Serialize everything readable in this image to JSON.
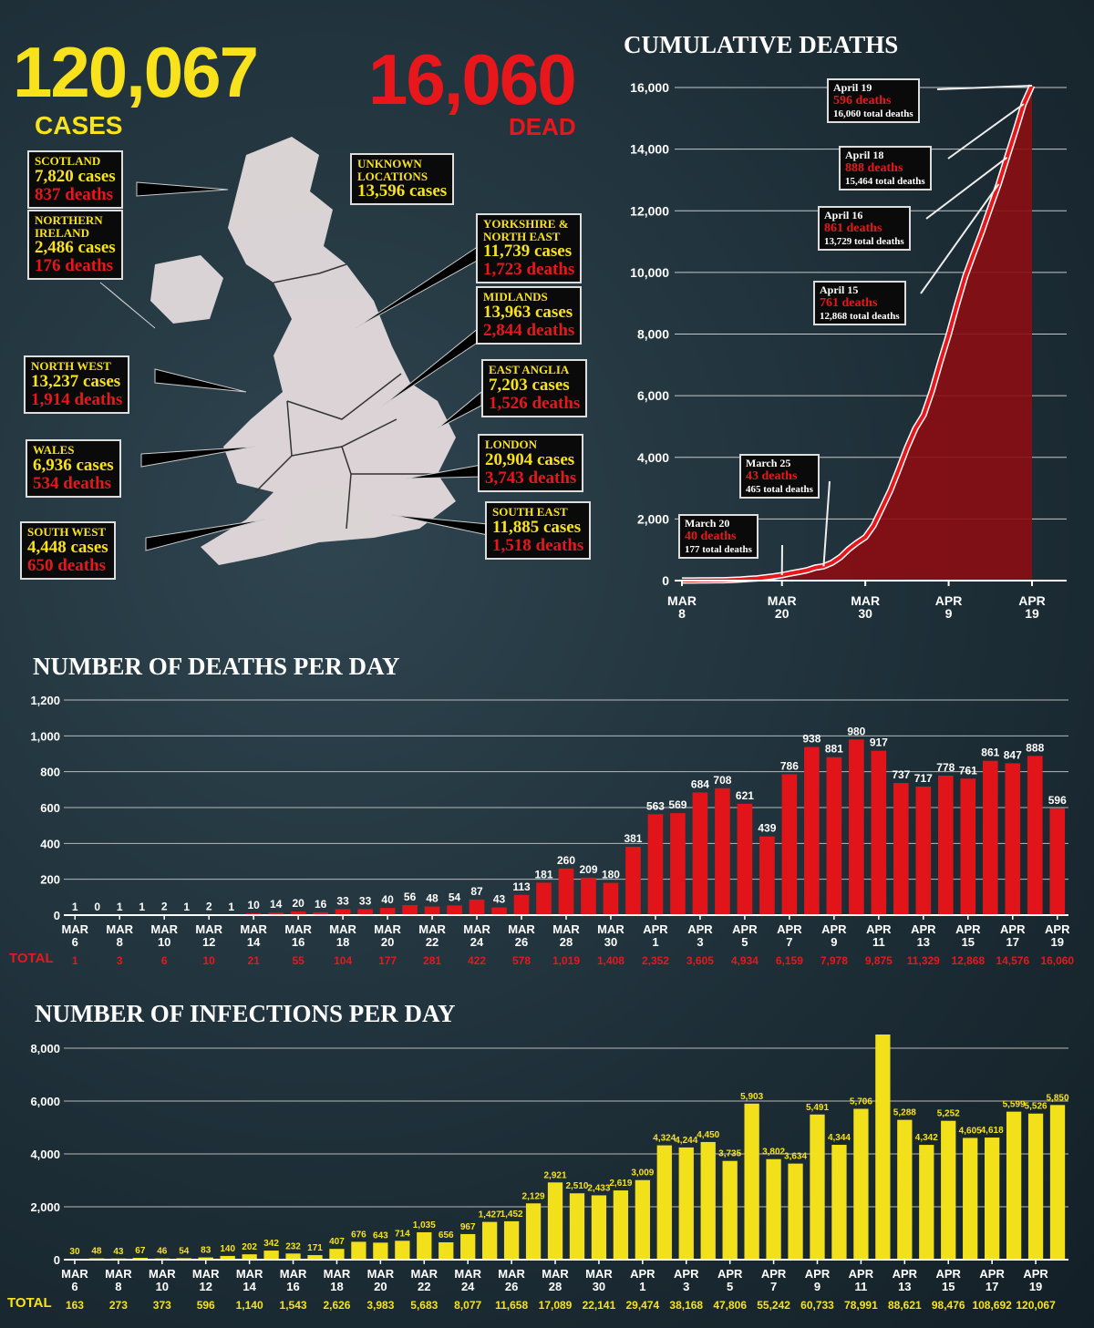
{
  "headline": {
    "cases_value": "120,067",
    "cases_label": "CASES",
    "dead_value": "16,060",
    "dead_label": "DEAD"
  },
  "regions": [
    {
      "name": "SCOTLAND",
      "cases": "7,820 cases",
      "deaths": "837 deaths"
    },
    {
      "name": "NORTHERN\nIRELAND",
      "cases": "2,486 cases",
      "deaths": "176 deaths"
    },
    {
      "name": "UNKNOWN\nLOCATIONS",
      "cases": "13,596 cases",
      "deaths": ""
    },
    {
      "name": "YORKSHIRE &\nNORTH EAST",
      "cases": "11,739 cases",
      "deaths": "1,723 deaths"
    },
    {
      "name": "MIDLANDS",
      "cases": "13,963 cases",
      "deaths": "2,844 deaths"
    },
    {
      "name": "NORTH WEST",
      "cases": "13,237 cases",
      "deaths": "1,914 deaths"
    },
    {
      "name": "EAST ANGLIA",
      "cases": "7,203 cases",
      "deaths": "1,526 deaths"
    },
    {
      "name": "WALES",
      "cases": "6,936 cases",
      "deaths": "534 deaths"
    },
    {
      "name": "LONDON",
      "cases": "20,904 cases",
      "deaths": "3,743 deaths"
    },
    {
      "name": "SOUTH EAST",
      "cases": "11,885 cases",
      "deaths": "1,518 deaths"
    },
    {
      "name": "SOUTH WEST",
      "cases": "4,448 cases",
      "deaths": "650 deaths"
    }
  ],
  "colors": {
    "yellow": "#f7e21c",
    "red": "#e8171b",
    "background": "#1e2f38"
  },
  "chart_data": [
    {
      "type": "area",
      "title": "CUMULATIVE DEATHS",
      "xlabel": "",
      "ylabel": "",
      "ylim": [
        0,
        16000
      ],
      "yticks": [
        "0",
        "2,000",
        "4,000",
        "6,000",
        "8,000",
        "10,000",
        "12,000",
        "14,000",
        "16,000"
      ],
      "xticks": [
        {
          "top": "MAR",
          "bottom": "8"
        },
        {
          "top": "MAR",
          "bottom": "20"
        },
        {
          "top": "MAR",
          "bottom": "30"
        },
        {
          "top": "APR",
          "bottom": "9"
        },
        {
          "top": "APR",
          "bottom": "19"
        }
      ],
      "grid": true,
      "x": [
        "Mar 8",
        "Mar 9",
        "Mar 10",
        "Mar 11",
        "Mar 12",
        "Mar 13",
        "Mar 14",
        "Mar 15",
        "Mar 16",
        "Mar 17",
        "Mar 18",
        "Mar 19",
        "Mar 20",
        "Mar 21",
        "Mar 22",
        "Mar 23",
        "Mar 24",
        "Mar 25",
        "Mar 26",
        "Mar 27",
        "Mar 28",
        "Mar 29",
        "Mar 30",
        "Mar 31",
        "Apr 1",
        "Apr 2",
        "Apr 3",
        "Apr 4",
        "Apr 5",
        "Apr 6",
        "Apr 7",
        "Apr 8",
        "Apr 9",
        "Apr 10",
        "Apr 11",
        "Apr 12",
        "Apr 13",
        "Apr 14",
        "Apr 15",
        "Apr 16",
        "Apr 17",
        "Apr 18",
        "Apr 19"
      ],
      "values": [
        3,
        4,
        6,
        8,
        10,
        11,
        21,
        35,
        55,
        71,
        104,
        137,
        177,
        233,
        281,
        335,
        422,
        465,
        578,
        759,
        1019,
        1228,
        1408,
        1789,
        2352,
        2921,
        3605,
        4313,
        4934,
        5373,
        6159,
        7097,
        7978,
        8958,
        9875,
        10612,
        11329,
        12107,
        12868,
        13729,
        14576,
        15464,
        16060
      ],
      "annotations": [
        {
          "date": "April 19",
          "deaths": "596 deaths",
          "total": "16,060 total deaths"
        },
        {
          "date": "April 18",
          "deaths": "888 deaths",
          "total": "15,464 total deaths"
        },
        {
          "date": "April 16",
          "deaths": "861 deaths",
          "total": "13,729 total deaths"
        },
        {
          "date": "April 15",
          "deaths": "761 deaths",
          "total": "12,868 total deaths"
        },
        {
          "date": "March 25",
          "deaths": "43 deaths",
          "total": "465 total deaths"
        },
        {
          "date": "March 20",
          "deaths": "40 deaths",
          "total": "177 total deaths"
        }
      ]
    },
    {
      "type": "bar",
      "title": "NUMBER OF DEATHS PER DAY",
      "xlabel": "",
      "ylabel": "",
      "ylim": [
        0,
        1200
      ],
      "yticks": [
        "0",
        "200",
        "400",
        "600",
        "800",
        "1,000",
        "1,200"
      ],
      "grid": true,
      "values": [
        1,
        0,
        1,
        1,
        2,
        1,
        2,
        1,
        10,
        14,
        20,
        16,
        33,
        33,
        40,
        56,
        48,
        54,
        87,
        43,
        113,
        181,
        260,
        209,
        180,
        381,
        563,
        569,
        684,
        708,
        621,
        439,
        786,
        938,
        881,
        980,
        917,
        737,
        717,
        778,
        761,
        861,
        847,
        888,
        596
      ],
      "xticks": [
        {
          "top": "MAR",
          "bottom": "6"
        },
        {
          "top": "MAR",
          "bottom": "8"
        },
        {
          "top": "MAR",
          "bottom": "10"
        },
        {
          "top": "MAR",
          "bottom": "12"
        },
        {
          "top": "MAR",
          "bottom": "14"
        },
        {
          "top": "MAR",
          "bottom": "16"
        },
        {
          "top": "MAR",
          "bottom": "18"
        },
        {
          "top": "MAR",
          "bottom": "20"
        },
        {
          "top": "MAR",
          "bottom": "22"
        },
        {
          "top": "MAR",
          "bottom": "24"
        },
        {
          "top": "MAR",
          "bottom": "26"
        },
        {
          "top": "MAR",
          "bottom": "28"
        },
        {
          "top": "MAR",
          "bottom": "30"
        },
        {
          "top": "APR",
          "bottom": "1"
        },
        {
          "top": "APR",
          "bottom": "3"
        },
        {
          "top": "APR",
          "bottom": "5"
        },
        {
          "top": "APR",
          "bottom": "7"
        },
        {
          "top": "APR",
          "bottom": "9"
        },
        {
          "top": "APR",
          "bottom": "11"
        },
        {
          "top": "APR",
          "bottom": "13"
        },
        {
          "top": "APR",
          "bottom": "15"
        },
        {
          "top": "APR",
          "bottom": "17"
        },
        {
          "top": "APR",
          "bottom": "19"
        }
      ],
      "total_label": "TOTAL",
      "totals": [
        "1",
        "3",
        "6",
        "10",
        "21",
        "55",
        "104",
        "177",
        "281",
        "422",
        "578",
        "1,019",
        "1,408",
        "2,352",
        "3,605",
        "4,934",
        "6,159",
        "7,978",
        "9,875",
        "11,329",
        "12,868",
        "14,576",
        "16,060"
      ]
    },
    {
      "type": "bar",
      "title": "NUMBER OF INFECTIONS PER DAY",
      "xlabel": "",
      "ylabel": "",
      "ylim": [
        0,
        8000
      ],
      "yticks": [
        "0",
        "2,000",
        "4,000",
        "6,000",
        "8,000"
      ],
      "grid": true,
      "values": [
        30,
        48,
        43,
        67,
        46,
        54,
        83,
        140,
        202,
        342,
        232,
        171,
        407,
        676,
        643,
        714,
        1035,
        656,
        967,
        1427,
        1452,
        2129,
        2921,
        2510,
        2433,
        2619,
        3009,
        4324,
        4244,
        4450,
        3735,
        5903,
        3802,
        3634,
        5491,
        4344,
        5706,
        8719,
        5288,
        4342,
        5252,
        4605,
        4618,
        5599,
        5526,
        5850
      ],
      "xticks": [
        {
          "top": "MAR",
          "bottom": "6"
        },
        {
          "top": "MAR",
          "bottom": "8"
        },
        {
          "top": "MAR",
          "bottom": "10"
        },
        {
          "top": "MAR",
          "bottom": "12"
        },
        {
          "top": "MAR",
          "bottom": "14"
        },
        {
          "top": "MAR",
          "bottom": "16"
        },
        {
          "top": "MAR",
          "bottom": "18"
        },
        {
          "top": "MAR",
          "bottom": "20"
        },
        {
          "top": "MAR",
          "bottom": "22"
        },
        {
          "top": "MAR",
          "bottom": "24"
        },
        {
          "top": "MAR",
          "bottom": "26"
        },
        {
          "top": "MAR",
          "bottom": "28"
        },
        {
          "top": "MAR",
          "bottom": "30"
        },
        {
          "top": "APR",
          "bottom": "1"
        },
        {
          "top": "APR",
          "bottom": "3"
        },
        {
          "top": "APR",
          "bottom": "5"
        },
        {
          "top": "APR",
          "bottom": "7"
        },
        {
          "top": "APR",
          "bottom": "9"
        },
        {
          "top": "APR",
          "bottom": "11"
        },
        {
          "top": "APR",
          "bottom": "13"
        },
        {
          "top": "APR",
          "bottom": "15"
        },
        {
          "top": "APR",
          "bottom": "17"
        },
        {
          "top": "APR",
          "bottom": "19"
        }
      ],
      "total_label": "TOTAL",
      "totals": [
        "163",
        "273",
        "373",
        "596",
        "1,140",
        "1,543",
        "2,626",
        "3,983",
        "5,683",
        "8,077",
        "11,658",
        "17,089",
        "22,141",
        "29,474",
        "38,168",
        "47,806",
        "55,242",
        "60,733",
        "78,991",
        "88,621",
        "98,476",
        "108,692",
        "120,067"
      ]
    }
  ]
}
